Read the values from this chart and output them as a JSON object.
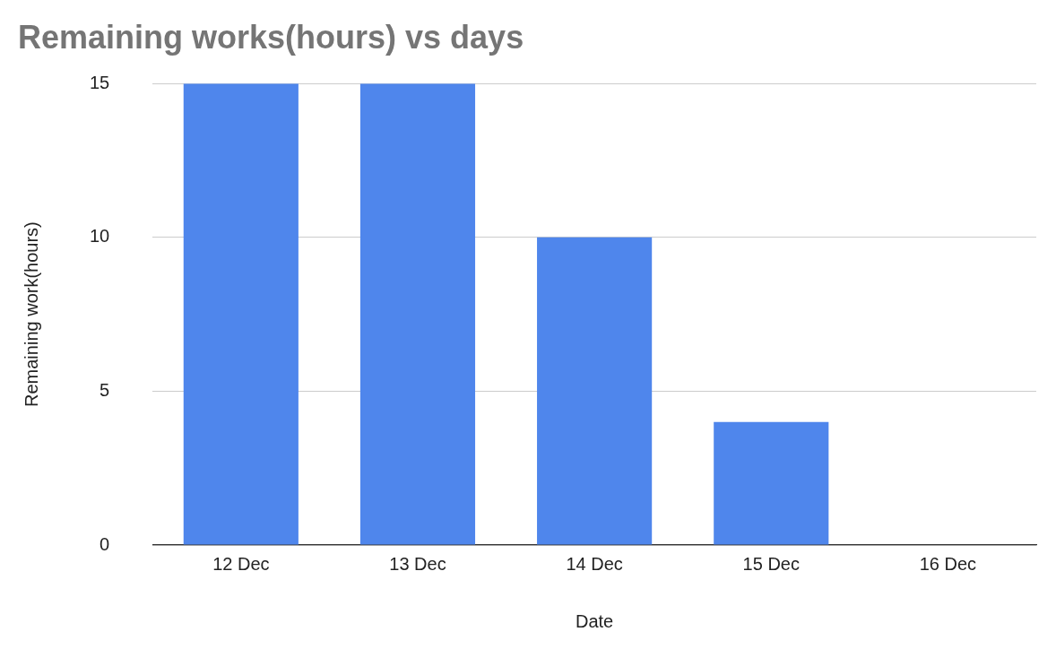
{
  "chart_data": {
    "type": "bar",
    "title": "Remaining works(hours) vs days",
    "xlabel": "Date",
    "ylabel": "Remaining work(hours)",
    "categories": [
      "12 Dec",
      "13 Dec",
      "14 Dec",
      "15 Dec",
      "16 Dec"
    ],
    "values": [
      15,
      15,
      10,
      4,
      0
    ],
    "color": "#4f86ec",
    "ylim": [
      0,
      15
    ],
    "yticks": [
      0,
      5,
      10,
      15
    ],
    "grid": "y",
    "legend": false
  }
}
